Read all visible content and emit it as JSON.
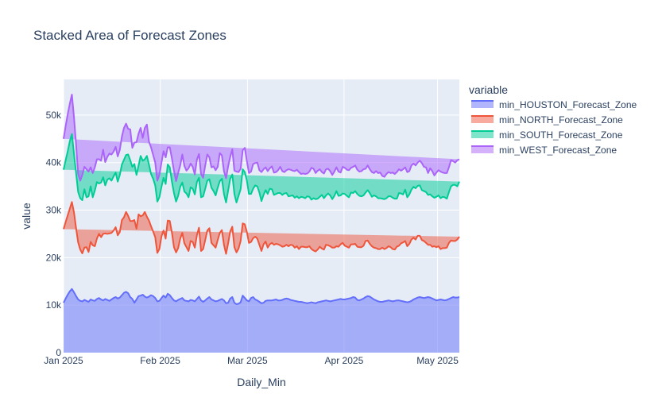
{
  "chart_data": {
    "type": "area",
    "stacked": true,
    "title": "Stacked Area of Forecast Zones",
    "xlabel": "Daily_Min",
    "ylabel": "value",
    "legend_title": "variable",
    "legend_position": "right",
    "x_start": "2025-01-01",
    "x_end": "2025-05-08",
    "ylim": [
      0,
      57500
    ],
    "y_ticks": [
      {
        "value": 0,
        "label": "0"
      },
      {
        "value": 10000,
        "label": "10k"
      },
      {
        "value": 20000,
        "label": "20k"
      },
      {
        "value": 30000,
        "label": "30k"
      },
      {
        "value": 40000,
        "label": "40k"
      },
      {
        "value": 50000,
        "label": "50k"
      }
    ],
    "x_ticks": [
      {
        "date": "2025-01-01",
        "label": "Jan 2025"
      },
      {
        "date": "2025-02-01",
        "label": "Feb 2025"
      },
      {
        "date": "2025-03-01",
        "label": "Mar 2025"
      },
      {
        "date": "2025-04-01",
        "label": "Apr 2025"
      },
      {
        "date": "2025-05-01",
        "label": "May 2025"
      }
    ],
    "series": [
      {
        "name": "min_HOUSTON_Forecast_Zone",
        "color": "#636efa",
        "fill": "rgba(99,110,250,0.5)",
        "values": [
          10500,
          11400,
          12200,
          12900,
          13400,
          12700,
          11900,
          11200,
          10900,
          10800,
          11100,
          10900,
          10700,
          11200,
          11000,
          10900,
          11300,
          11500,
          11200,
          11000,
          11300,
          11100,
          10900,
          11200,
          11500,
          11700,
          11400,
          11600,
          12100,
          12600,
          12800,
          12500,
          11700,
          11300,
          10500,
          11200,
          11900,
          12000,
          12200,
          11800,
          11600,
          11800,
          12100,
          11900,
          11500,
          10800,
          10900,
          11500,
          12000,
          11600,
          12400,
          12100,
          11500,
          11000,
          10800,
          11100,
          11300,
          11500,
          11000,
          10900,
          10800,
          11100,
          11000,
          10800,
          11300,
          11800,
          11000,
          10700,
          11000,
          11400,
          11700,
          11200,
          11000,
          10800,
          10900,
          11100,
          11300,
          11000,
          10400,
          10500,
          11400,
          11700,
          10500,
          10200,
          10300,
          10600,
          12000,
          11500,
          11000,
          10800,
          11500,
          11700,
          11200,
          11000,
          10700,
          10400,
          10500,
          10900,
          11000,
          11000,
          11000,
          11100,
          11200,
          11000,
          11000,
          11100,
          11300,
          11400,
          11300,
          11100,
          11000,
          10900,
          10800,
          10700,
          10700,
          10600,
          10500,
          10400,
          10500,
          10600,
          10500,
          10400,
          10600,
          10700,
          10800,
          10900,
          11000,
          10900,
          10800,
          10900,
          11000,
          11100,
          11200,
          11300,
          11200,
          11200,
          11300,
          11400,
          11500,
          11700,
          11600,
          11100,
          11000,
          11200,
          11400,
          11700,
          11900,
          11800,
          11500,
          11200,
          11000,
          10800,
          10700,
          10700,
          10800,
          10900,
          11000,
          10900,
          10800,
          10900,
          11000,
          11000,
          10900,
          10800,
          10700,
          10600,
          10700,
          10900,
          11200,
          11400,
          11600,
          11700,
          11600,
          11500,
          11600,
          11700,
          11600,
          11400,
          11200,
          11000,
          11100,
          11200,
          11100,
          11000,
          11100,
          11300,
          11500,
          11700,
          11600,
          11600,
          11700
        ]
      },
      {
        "name": "min_NORTH_Forecast_Zone",
        "color": "#ef553b",
        "fill": "rgba(239,85,59,0.5)",
        "values": [
          15500,
          16100,
          16700,
          17400,
          18300,
          16800,
          14300,
          12000,
          10800,
          10100,
          11000,
          11300,
          10500,
          12100,
          11600,
          11500,
          12700,
          13500,
          13100,
          14000,
          13800,
          13900,
          14200,
          14000,
          14200,
          14700,
          13300,
          13800,
          15800,
          15900,
          16800,
          16300,
          16000,
          16400,
          17400,
          14900,
          17200,
          16700,
          16700,
          17800,
          17000,
          16000,
          14500,
          13600,
          12800,
          10200,
          10900,
          13000,
          13700,
          12400,
          15400,
          15600,
          13800,
          11200,
          10300,
          10900,
          12700,
          13700,
          12000,
          11300,
          10600,
          12400,
          12300,
          11300,
          13400,
          14500,
          10400,
          11100,
          12700,
          14300,
          14500,
          11900,
          11600,
          11300,
          12800,
          14100,
          14500,
          11700,
          10400,
          12500,
          14100,
          14800,
          11700,
          10900,
          11600,
          12900,
          15200,
          15500,
          14400,
          12300,
          11800,
          12400,
          13200,
          13000,
          12000,
          11000,
          12300,
          12500,
          11100,
          11800,
          12100,
          11600,
          11700,
          11800,
          11600,
          11200,
          11100,
          11300,
          11100,
          11600,
          11600,
          11200,
          11600,
          11100,
          11600,
          11700,
          11700,
          11800,
          11900,
          11200,
          11000,
          10900,
          11100,
          11600,
          11100,
          10800,
          11700,
          11700,
          11600,
          11200,
          11100,
          11300,
          11100,
          11500,
          11900,
          11300,
          11000,
          10700,
          11300,
          11100,
          11300,
          11200,
          11200,
          11000,
          11100,
          11800,
          11700,
          11100,
          10900,
          10900,
          11000,
          11000,
          11100,
          11400,
          11000,
          11100,
          11400,
          11300,
          11000,
          10800,
          11300,
          11500,
          12100,
          12400,
          12800,
          11800,
          12200,
          12900,
          13000,
          12400,
          13000,
          12900,
          12100,
          12000,
          11500,
          11000,
          11100,
          10900,
          11200,
          11200,
          11300,
          10600,
          10900,
          11000,
          11000,
          11800,
          12100,
          11800,
          11900,
          12200,
          12700,
          12500
        ]
      },
      {
        "name": "min_SOUTH_Forecast_Zone",
        "color": "#00cc96",
        "fill": "rgba(0,204,150,0.5)",
        "values": [
          12500,
          13000,
          13500,
          14200,
          14300,
          12300,
          11600,
          10600,
          10800,
          11200,
          12300,
          10500,
          11700,
          11700,
          10100,
          11700,
          11900,
          10600,
          11500,
          11900,
          10100,
          11400,
          11600,
          11000,
          11400,
          11500,
          11300,
          12000,
          11700,
          12100,
          12000,
          12900,
          12800,
          11400,
          11800,
          11300,
          10300,
          12700,
          11500,
          11100,
          12800,
          11800,
          11000,
          11100,
          10900,
          10800,
          10900,
          10400,
          11100,
          11500,
          11800,
          11300,
          10700,
          11400,
          10700,
          11000,
          10900,
          10600,
          10900,
          11300,
          11300,
          11300,
          11200,
          11200,
          11200,
          10500,
          11300,
          11100,
          10800,
          10500,
          10300,
          11600,
          11400,
          11000,
          11000,
          10900,
          10800,
          10700,
          10800,
          11100,
          11100,
          11000,
          11200,
          10500,
          11100,
          10900,
          11400,
          11000,
          10800,
          10300,
          10100,
          10400,
          10800,
          11000,
          11000,
          10500,
          10400,
          10800,
          11300,
          11700,
          11300,
          10500,
          10500,
          10800,
          11000,
          10900,
          11100,
          10900,
          10500,
          10300,
          10500,
          10500,
          10500,
          10700,
          10500,
          10400,
          10300,
          10700,
          10400,
          10400,
          11000,
          11000,
          10700,
          10500,
          11300,
          10800,
          10400,
          10900,
          10700,
          10200,
          10900,
          11600,
          10700,
          10300,
          10400,
          10900,
          10700,
          10600,
          10900,
          10800,
          11100,
          11100,
          10800,
          10700,
          10600,
          10200,
          10600,
          10700,
          10400,
          11000,
          10900,
          10700,
          10700,
          10300,
          10500,
          10500,
          10500,
          10700,
          10800,
          10700,
          10100,
          11100,
          10500,
          10100,
          10800,
          10300,
          10400,
          10500,
          10700,
          10800,
          10500,
          10600,
          10500,
          10500,
          10700,
          10500,
          10600,
          10600,
          10200,
          10600,
          10700,
          10700,
          10800,
          10700,
          10300,
          10700,
          11400,
          11800,
          11800,
          11200,
          11600,
          11500
        ]
      },
      {
        "name": "min_WEST_Forecast_Zone",
        "color": "#ab63fa",
        "fill": "rgba(171,99,250,0.5)",
        "values": [
          6500,
          7200,
          7800,
          7900,
          8300,
          7700,
          6000,
          3800,
          3700,
          5300,
          4700,
          5900,
          5200,
          4000,
          5100,
          4900,
          4800,
          5100,
          4600,
          5800,
          4900,
          4800,
          5200,
          5500,
          5200,
          5400,
          5300,
          5300,
          5900,
          6700,
          6600,
          5400,
          6500,
          4000,
          4500,
          6900,
          6700,
          5900,
          4800,
          6600,
          6600,
          4800,
          5600,
          5000,
          4800,
          4400,
          4700,
          5100,
          5600,
          5600,
          3600,
          4200,
          4900,
          4700,
          4300,
          4800,
          4500,
          5900,
          5400,
          4800,
          6100,
          5000,
          4600,
          4200,
          4700,
          5000,
          4900,
          3900,
          4900,
          5500,
          4600,
          4300,
          5200,
          5300,
          4400,
          5900,
          4900,
          4800,
          5100,
          5100,
          4600,
          5300,
          4900,
          6500,
          5000,
          4300,
          4000,
          5100,
          4100,
          4400,
          4700,
          5200,
          4700,
          5000,
          4700,
          6100,
          5400,
          4800,
          4800,
          4300,
          4800,
          4700,
          4600,
          4800,
          5500,
          5000,
          4500,
          4800,
          5700,
          5500,
          5200,
          5600,
          5600,
          5500,
          4800,
          5000,
          5100,
          4800,
          5300,
          6700,
          6200,
          5500,
          5900,
          5800,
          4800,
          5200,
          5500,
          5200,
          5100,
          5100,
          5100,
          5000,
          5100,
          4800,
          5600,
          5500,
          5500,
          5700,
          5200,
          5500,
          5400,
          5100,
          5100,
          5300,
          5500,
          5000,
          5200,
          5000,
          5200,
          4700,
          5300,
          5300,
          5400,
          4800,
          4700,
          5100,
          5100,
          4900,
          5300,
          5200,
          5600,
          5000,
          4800,
          5300,
          4700,
          5300,
          4900,
          5100,
          4900,
          4800,
          4900,
          5200,
          5700,
          5100,
          5200,
          4600,
          5500,
          5300,
          4700,
          5100,
          5300,
          5600,
          5100,
          5100,
          5400,
          5200,
          5500,
          5000,
          4700,
          5500,
          4700,
          5800,
          5100,
          5800,
          5800,
          5400,
          5600,
          5900
        ]
      }
    ]
  }
}
